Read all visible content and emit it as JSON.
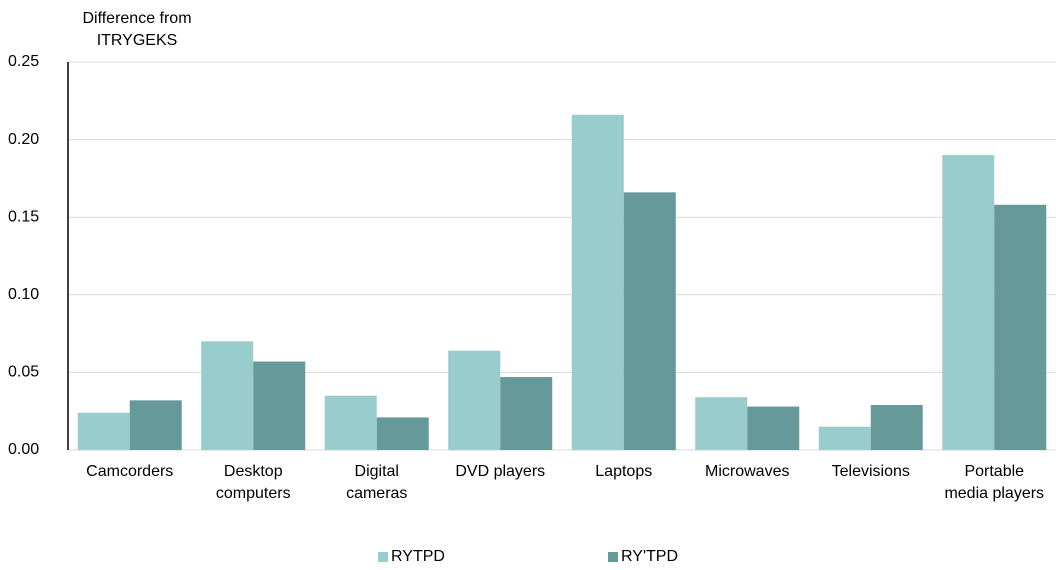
{
  "chart_data": {
    "type": "bar",
    "y_axis_title": "Difference from ITRYGEKS",
    "categories": [
      "Camcorders",
      "Desktop computers",
      "Digital cameras",
      "DVD players",
      "Laptops",
      "Microwaves",
      "Televisions",
      "Portable media players"
    ],
    "series": [
      {
        "name": "RYTPD",
        "color": "#99cccc",
        "values": [
          0.024,
          0.07,
          0.035,
          0.064,
          0.216,
          0.034,
          0.015,
          0.19
        ]
      },
      {
        "name": "RY'TPD",
        "color": "#669999",
        "values": [
          0.032,
          0.057,
          0.021,
          0.047,
          0.166,
          0.028,
          0.029,
          0.158
        ]
      }
    ],
    "ylim": [
      0,
      0.25
    ],
    "yticks": [
      {
        "value": 0,
        "label": "0.00"
      },
      {
        "value": 0.05,
        "label": "0.05"
      },
      {
        "value": 0.1,
        "label": "0.10"
      },
      {
        "value": 0.15,
        "label": "0.15"
      },
      {
        "value": 0.2,
        "label": "0.20"
      },
      {
        "value": 0.25,
        "label": "0.25"
      }
    ],
    "grid": true
  }
}
